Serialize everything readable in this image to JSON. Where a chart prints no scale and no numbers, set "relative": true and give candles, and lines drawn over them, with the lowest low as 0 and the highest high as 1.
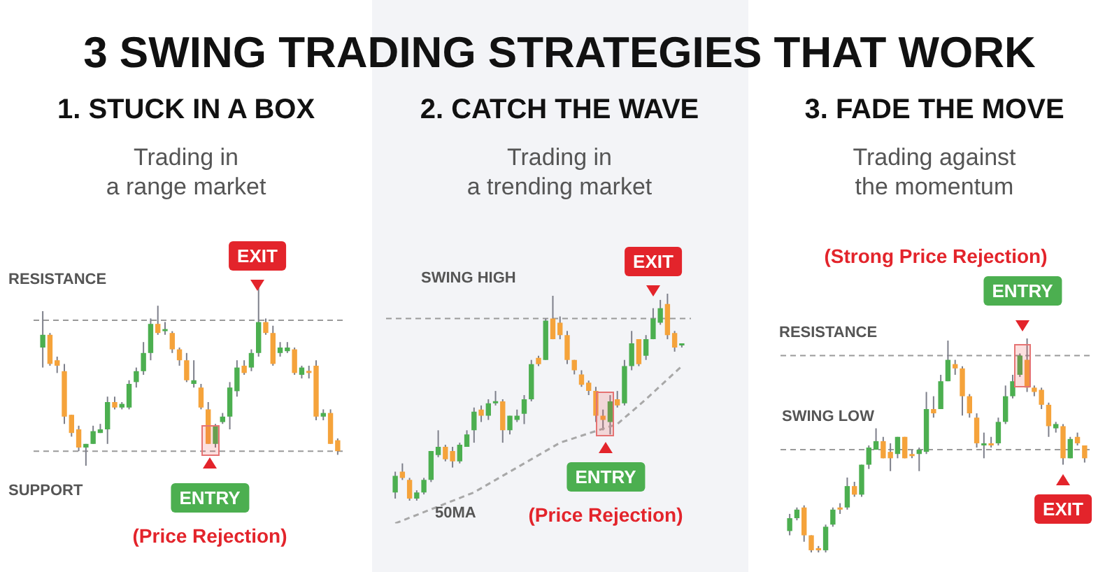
{
  "chart_data": [
    {
      "type": "other",
      "title": "3 SWING TRADING STRATEGIES THAT WORK"
    },
    {
      "type": "candlestick",
      "title": "1.  STUCK IN A BOX",
      "subtitle": "Trading in\na range market",
      "relative": true,
      "categories": [
        null,
        null,
        null,
        null,
        null,
        null,
        null,
        null,
        null,
        null,
        null,
        null,
        null,
        null,
        null,
        null,
        null,
        null,
        null,
        null,
        null,
        null,
        null,
        null,
        null,
        null,
        null,
        null,
        null,
        null,
        null,
        null,
        null,
        null,
        null,
        null,
        null,
        null,
        null,
        null,
        null,
        null
      ],
      "ohlc": [
        [
          0.65,
          0.85,
          0.54,
          0.72
        ],
        [
          0.72,
          0.73,
          0.55,
          0.56
        ],
        [
          0.58,
          0.6,
          0.51,
          0.55
        ],
        [
          0.52,
          0.56,
          0.23,
          0.27
        ],
        [
          0.28,
          0.28,
          0.16,
          0.18
        ],
        [
          0.2,
          0.22,
          0.08,
          0.1
        ],
        [
          0.1,
          0.12,
          0,
          0.12
        ],
        [
          0.12,
          0.22,
          0.12,
          0.19
        ],
        [
          0.18,
          0.23,
          0.18,
          0.2
        ],
        [
          0.2,
          0.38,
          0.12,
          0.35
        ],
        [
          0.35,
          0.38,
          0.31,
          0.32
        ],
        [
          0.32,
          0.35,
          0.31,
          0.34
        ],
        [
          0.32,
          0.47,
          0.31,
          0.45
        ],
        [
          0.46,
          0.54,
          0.43,
          0.52
        ],
        [
          0.52,
          0.68,
          0.5,
          0.62
        ],
        [
          0.62,
          0.81,
          0.58,
          0.78
        ],
        [
          0.78,
          0.88,
          0.72,
          0.73
        ],
        [
          0.74,
          0.79,
          0.72,
          0.75
        ],
        [
          0.73,
          0.74,
          0.62,
          0.64
        ],
        [
          0.64,
          0.65,
          0.55,
          0.58
        ],
        [
          0.58,
          0.62,
          0.46,
          0.47
        ],
        [
          0.45,
          0.58,
          0.43,
          0.47
        ],
        [
          0.43,
          0.45,
          0.31,
          0.32
        ],
        [
          0.31,
          0.35,
          0.12,
          0.12
        ],
        [
          0.12,
          0.23,
          0.1,
          0.22
        ],
        [
          0.24,
          0.29,
          0.23,
          0.27
        ],
        [
          0.27,
          0.46,
          0.2,
          0.43
        ],
        [
          0.41,
          0.58,
          0.38,
          0.54
        ],
        [
          0.55,
          0.58,
          0.5,
          0.51
        ],
        [
          0.54,
          0.64,
          0.52,
          0.62
        ],
        [
          0.62,
          1,
          0.6,
          0.79
        ],
        [
          0.79,
          0.81,
          0.72,
          0.73
        ],
        [
          0.73,
          0.77,
          0.55,
          0.56
        ],
        [
          0.62,
          0.68,
          0.6,
          0.65
        ],
        [
          0.63,
          0.68,
          0.62,
          0.65
        ],
        [
          0.64,
          0.65,
          0.5,
          0.51
        ],
        [
          0.5,
          0.55,
          0.48,
          0.54
        ],
        [
          0.52,
          0.55,
          0.48,
          0.51
        ],
        [
          0.55,
          0.58,
          0.25,
          0.27
        ],
        [
          0.27,
          0.31,
          0.25,
          0.29
        ],
        [
          0.29,
          0.31,
          0.12,
          0.12
        ],
        [
          0.14,
          0.15,
          0.06,
          0.08
        ]
      ],
      "colors": [
        "#4caf50",
        "#f5a33b",
        "#f5a33b",
        "#f5a33b",
        "#f5a33b",
        "#f5a33b",
        "#4caf50",
        "#4caf50",
        "#4caf50",
        "#4caf50",
        "#f5a33b",
        "#4caf50",
        "#4caf50",
        "#4caf50",
        "#4caf50",
        "#4caf50",
        "#f5a33b",
        "#4caf50",
        "#f5a33b",
        "#f5a33b",
        "#f5a33b",
        "#4caf50",
        "#f5a33b",
        "#f5a33b",
        "#4caf50",
        "#4caf50",
        "#4caf50",
        "#4caf50",
        "#f5a33b",
        "#4caf50",
        "#4caf50",
        "#f5a33b",
        "#f5a33b",
        "#4caf50",
        "#4caf50",
        "#f5a33b",
        "#4caf50",
        "#f5a33b",
        "#f5a33b",
        "#4caf50",
        "#f5a33b",
        "#f5a33b"
      ],
      "ref_lines": [
        {
          "axis": "y",
          "value": 0.8,
          "label": "RESISTANCE",
          "color": "#9a9a9a",
          "line_style": "dashed"
        },
        {
          "axis": "y",
          "value": 0.08,
          "label": "SUPPORT",
          "color": "#9a9a9a",
          "line_style": "dashed"
        }
      ],
      "annotations": [
        "EXIT",
        "ENTRY",
        "(Price Rejection)"
      ]
    },
    {
      "type": "candlestick",
      "title": "2.  CATCH THE WAVE",
      "subtitle": "Trading in\na trending market",
      "relative": true,
      "categories": [
        null,
        null,
        null,
        null,
        null,
        null,
        null,
        null,
        null,
        null,
        null,
        null,
        null,
        null,
        null,
        null,
        null,
        null,
        null,
        null,
        null,
        null,
        null,
        null,
        null,
        null,
        null,
        null,
        null,
        null,
        null,
        null,
        null,
        null,
        null,
        null,
        null,
        null,
        null,
        null,
        null
      ],
      "ohlc": [
        [
          0.04,
          0.14,
          0.01,
          0.12
        ],
        [
          0.14,
          0.18,
          0.1,
          0.11
        ],
        [
          0.1,
          0.11,
          0,
          0.01
        ],
        [
          0.01,
          0.05,
          0,
          0.04
        ],
        [
          0.04,
          0.11,
          0.03,
          0.1
        ],
        [
          0.1,
          0.24,
          0.09,
          0.24
        ],
        [
          0.22,
          0.34,
          0.21,
          0.26
        ],
        [
          0.26,
          0.27,
          0.19,
          0.2
        ],
        [
          0.24,
          0.26,
          0.16,
          0.19
        ],
        [
          0.19,
          0.28,
          0.18,
          0.27
        ],
        [
          0.26,
          0.34,
          0.26,
          0.32
        ],
        [
          0.34,
          0.45,
          0.28,
          0.43
        ],
        [
          0.44,
          0.46,
          0.38,
          0.41
        ],
        [
          0.41,
          0.49,
          0.39,
          0.47
        ],
        [
          0.47,
          0.53,
          0.46,
          0.48
        ],
        [
          0.48,
          0.49,
          0.28,
          0.34
        ],
        [
          0.34,
          0.41,
          0.32,
          0.41
        ],
        [
          0.39,
          0.44,
          0.38,
          0.41
        ],
        [
          0.42,
          0.51,
          0.37,
          0.49
        ],
        [
          0.49,
          0.68,
          0.48,
          0.66
        ],
        [
          0.69,
          0.7,
          0.65,
          0.66
        ],
        [
          0.68,
          0.88,
          0.68,
          0.87
        ],
        [
          0.88,
          0.99,
          0.78,
          0.78
        ],
        [
          0.86,
          0.89,
          0.78,
          0.8
        ],
        [
          0.8,
          0.82,
          0.66,
          0.68
        ],
        [
          0.68,
          0.68,
          0.61,
          0.63
        ],
        [
          0.61,
          0.63,
          0.55,
          0.56
        ],
        [
          0.57,
          0.58,
          0.51,
          0.53
        ],
        [
          0.53,
          0.55,
          0.38,
          0.41
        ],
        [
          0.41,
          0.44,
          0.34,
          0.39
        ],
        [
          0.38,
          0.51,
          0.32,
          0.48
        ],
        [
          0.49,
          0.53,
          0.45,
          0.46
        ],
        [
          0.47,
          0.68,
          0.46,
          0.65
        ],
        [
          0.65,
          0.82,
          0.63,
          0.76
        ],
        [
          0.78,
          0.78,
          0.65,
          0.66
        ],
        [
          0.7,
          0.8,
          0.68,
          0.78
        ],
        [
          0.78,
          0.93,
          0.78,
          0.88
        ],
        [
          0.86,
          0.97,
          0.85,
          0.93
        ],
        [
          0.95,
          1,
          0.78,
          0.8
        ],
        [
          0.81,
          0.82,
          0.72,
          0.74
        ],
        [
          0.75,
          0.76,
          0.74,
          0.76
        ]
      ],
      "colors": [
        "#4caf50",
        "#f5a33b",
        "#f5a33b",
        "#4caf50",
        "#4caf50",
        "#4caf50",
        "#4caf50",
        "#f5a33b",
        "#f5a33b",
        "#4caf50",
        "#4caf50",
        "#4caf50",
        "#f5a33b",
        "#4caf50",
        "#4caf50",
        "#f5a33b",
        "#4caf50",
        "#4caf50",
        "#4caf50",
        "#4caf50",
        "#f5a33b",
        "#4caf50",
        "#f5a33b",
        "#f5a33b",
        "#f5a33b",
        "#f5a33b",
        "#f5a33b",
        "#f5a33b",
        "#f5a33b",
        "#f5a33b",
        "#4caf50",
        "#f5a33b",
        "#4caf50",
        "#4caf50",
        "#f5a33b",
        "#4caf50",
        "#4caf50",
        "#4caf50",
        "#f5a33b",
        "#f5a33b",
        "#4caf50"
      ],
      "series": [
        {
          "type": "line",
          "name": "50MA",
          "color": "#a8a8a8",
          "values": [
            -0.11,
            null,
            null,
            null,
            null,
            null,
            null,
            null,
            null,
            null,
            null,
            0.04,
            null,
            null,
            null,
            null,
            null,
            null,
            null,
            null,
            null,
            null,
            null,
            0.28,
            null,
            null,
            null,
            null,
            null,
            null,
            null,
            0.37,
            null,
            null,
            null,
            0.49,
            null,
            null,
            null,
            null,
            0.65
          ]
        }
      ],
      "line_style": "dashed",
      "marker": "none",
      "ref_lines": [
        {
          "axis": "y",
          "value": 0.88,
          "label": "SWING HIGH",
          "color": "#9a9a9a",
          "line_style": "dashed"
        }
      ],
      "annotations": [
        "EXIT",
        "ENTRY",
        "(Price Rejection)"
      ]
    },
    {
      "type": "candlestick",
      "title": "3.  FADE THE MOVE",
      "subtitle": "Trading against\nthe momentum",
      "relative": true,
      "categories": [
        null,
        null,
        null,
        null,
        null,
        null,
        null,
        null,
        null,
        null,
        null,
        null,
        null,
        null,
        null,
        null,
        null,
        null,
        null,
        null,
        null,
        null,
        null,
        null,
        null,
        null,
        null,
        null,
        null,
        null,
        null,
        null,
        null,
        null,
        null,
        null,
        null,
        null,
        null,
        null,
        null,
        null
      ],
      "ohlc": [
        [
          0.1,
          0.18,
          0.08,
          0.16
        ],
        [
          0.16,
          0.21,
          0.15,
          0.2
        ],
        [
          0.21,
          0.22,
          0.05,
          0.08
        ],
        [
          0.08,
          0.08,
          0,
          0.01
        ],
        [
          0.02,
          0.03,
          0,
          0.01
        ],
        [
          0.01,
          0.13,
          0,
          0.12
        ],
        [
          0.13,
          0.21,
          0.12,
          0.2
        ],
        [
          0.21,
          0.23,
          0.18,
          0.2
        ],
        [
          0.21,
          0.35,
          0.2,
          0.31
        ],
        [
          0.31,
          0.33,
          0.26,
          0.27
        ],
        [
          0.27,
          0.41,
          0.26,
          0.41
        ],
        [
          0.41,
          0.5,
          0.39,
          0.49
        ],
        [
          0.48,
          0.58,
          0.48,
          0.52
        ],
        [
          0.52,
          0.54,
          0.44,
          0.44
        ],
        [
          0.47,
          0.51,
          0.38,
          0.44
        ],
        [
          0.46,
          0.54,
          0.44,
          0.54
        ],
        [
          0.54,
          0.54,
          0.44,
          0.44
        ],
        [
          0.46,
          0.48,
          0.44,
          0.45
        ],
        [
          0.46,
          0.49,
          0.38,
          0.48
        ],
        [
          0.47,
          0.75,
          0.46,
          0.67
        ],
        [
          0.67,
          0.73,
          0.63,
          0.65
        ],
        [
          0.67,
          0.83,
          0.67,
          0.8
        ],
        [
          0.8,
          0.99,
          0.8,
          0.9
        ],
        [
          0.88,
          0.9,
          0.83,
          0.86
        ],
        [
          0.86,
          0.87,
          0.64,
          0.73
        ],
        [
          0.73,
          0.74,
          0.63,
          0.65
        ],
        [
          0.63,
          0.65,
          0.49,
          0.51
        ],
        [
          0.5,
          0.56,
          0.44,
          0.51
        ],
        [
          0.51,
          0.54,
          0.49,
          0.5
        ],
        [
          0.51,
          0.63,
          0.5,
          0.61
        ],
        [
          0.61,
          0.78,
          0.6,
          0.73
        ],
        [
          0.73,
          0.83,
          0.72,
          0.8
        ],
        [
          0.83,
          0.93,
          0.82,
          0.92
        ],
        [
          0.9,
          1,
          0.75,
          0.77
        ],
        [
          0.77,
          0.78,
          0.73,
          0.75
        ],
        [
          0.76,
          0.77,
          0.67,
          0.69
        ],
        [
          0.69,
          0.7,
          0.54,
          0.59
        ],
        [
          0.58,
          0.61,
          0.56,
          0.6
        ],
        [
          0.59,
          0.6,
          0.41,
          0.44
        ],
        [
          0.44,
          0.54,
          0.44,
          0.53
        ],
        [
          0.54,
          0.56,
          0.5,
          0.51
        ],
        [
          0.5,
          0.5,
          0.42,
          0.44
        ]
      ],
      "colors": [
        "#4caf50",
        "#4caf50",
        "#f5a33b",
        "#f5a33b",
        "#f5a33b",
        "#4caf50",
        "#4caf50",
        "#f5a33b",
        "#4caf50",
        "#f5a33b",
        "#4caf50",
        "#4caf50",
        "#4caf50",
        "#f5a33b",
        "#f5a33b",
        "#4caf50",
        "#f5a33b",
        "#f5a33b",
        "#4caf50",
        "#4caf50",
        "#f5a33b",
        "#4caf50",
        "#4caf50",
        "#f5a33b",
        "#f5a33b",
        "#f5a33b",
        "#f5a33b",
        "#4caf50",
        "#f5a33b",
        "#4caf50",
        "#4caf50",
        "#4caf50",
        "#4caf50",
        "#f5a33b",
        "#f5a33b",
        "#f5a33b",
        "#f5a33b",
        "#4caf50",
        "#f5a33b",
        "#4caf50",
        "#f5a33b",
        "#f5a33b"
      ],
      "ref_lines": [
        {
          "axis": "y",
          "value": 0.92,
          "label": "RESISTANCE",
          "color": "#9a9a9a",
          "line_style": "dashed"
        },
        {
          "axis": "y",
          "value": 0.48,
          "label": "SWING LOW",
          "color": "#9a9a9a",
          "line_style": "dashed"
        }
      ],
      "annotations": [
        "(Strong Price Rejection)",
        "ENTRY",
        "EXIT"
      ]
    }
  ]
}
